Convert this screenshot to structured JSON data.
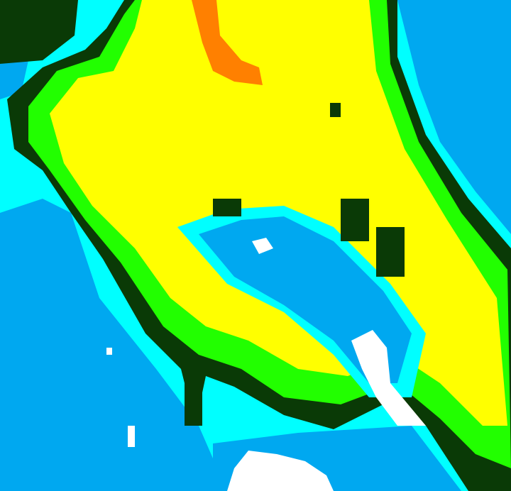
{
  "image": {
    "type": "false-color classified raster",
    "legend_visible": false,
    "palette": {
      "background_cyan": "#00ffff",
      "blue": "#00a8f0",
      "dark_green": "#0a3a06",
      "green": "#22ff00",
      "yellow": "#ffff00",
      "orange": "#ff8000",
      "white": "#ffffff"
    }
  }
}
